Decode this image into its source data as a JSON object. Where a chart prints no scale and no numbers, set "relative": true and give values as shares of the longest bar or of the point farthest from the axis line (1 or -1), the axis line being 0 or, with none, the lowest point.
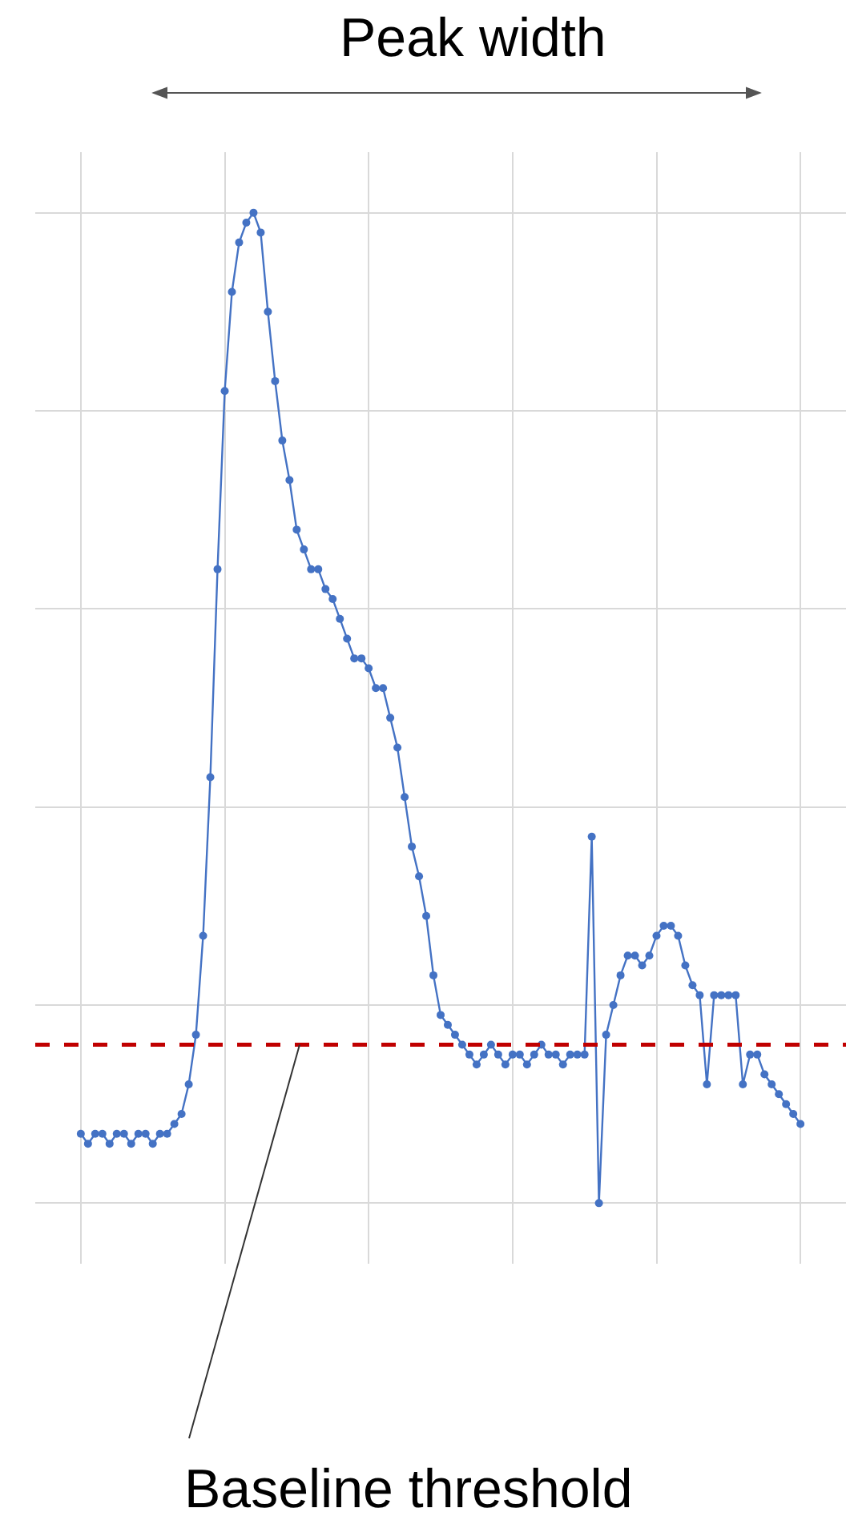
{
  "chart_data": {
    "type": "line",
    "relative": true,
    "grid": true,
    "marker": "circle",
    "categories": [
      null,
      null,
      null,
      null,
      null,
      null,
      null,
      null,
      null,
      null,
      null,
      null,
      null,
      null,
      null,
      null,
      null,
      null,
      null,
      null,
      null,
      null,
      null,
      null,
      null,
      null,
      null,
      null,
      null,
      null,
      null,
      null,
      null,
      null,
      null,
      null,
      null,
      null,
      null,
      null,
      null,
      null,
      null,
      null,
      null,
      null,
      null,
      null,
      null,
      null,
      null,
      null,
      null,
      null,
      null,
      null,
      null,
      null,
      null,
      null,
      null,
      null,
      null,
      null,
      null,
      null,
      null,
      null,
      null,
      null,
      null,
      null,
      null,
      null,
      null,
      null,
      null,
      null,
      null,
      null,
      null,
      null,
      null,
      null,
      null,
      null,
      null,
      null,
      null,
      null,
      null,
      null,
      null,
      null,
      null,
      null,
      null,
      null,
      null,
      null,
      null
    ],
    "series": [
      {
        "color": "#4472c4",
        "values": [
          0.07,
          0.06,
          0.07,
          0.07,
          0.06,
          0.07,
          0.07,
          0.06,
          0.07,
          0.07,
          0.06,
          0.07,
          0.07,
          0.08,
          0.09,
          0.12,
          0.17,
          0.27,
          0.43,
          0.64,
          0.82,
          0.92,
          0.97,
          0.99,
          1.0,
          0.98,
          0.9,
          0.83,
          0.77,
          0.73,
          0.68,
          0.66,
          0.64,
          0.64,
          0.62,
          0.61,
          0.59,
          0.57,
          0.55,
          0.55,
          0.54,
          0.52,
          0.52,
          0.49,
          0.46,
          0.41,
          0.36,
          0.33,
          0.29,
          0.23,
          0.19,
          0.18,
          0.17,
          0.16,
          0.15,
          0.14,
          0.15,
          0.16,
          0.15,
          0.14,
          0.15,
          0.15,
          0.14,
          0.15,
          0.16,
          0.15,
          0.15,
          0.14,
          0.15,
          0.15,
          0.15,
          0.37,
          0.0,
          0.17,
          0.2,
          0.23,
          0.25,
          0.25,
          0.24,
          0.25,
          0.27,
          0.28,
          0.28,
          0.27,
          0.24,
          0.22,
          0.21,
          0.12,
          0.21,
          0.21,
          0.21,
          0.21,
          0.12,
          0.15,
          0.15,
          0.13,
          0.12,
          0.11,
          0.1,
          0.09,
          0.08
        ]
      }
    ],
    "ref_lines": [
      {
        "axis": "y",
        "value": 0.16,
        "label": "Baseline threshold",
        "color": "#c00000",
        "line_style": "dashed"
      }
    ],
    "annotations": [
      "Peak width"
    ]
  }
}
